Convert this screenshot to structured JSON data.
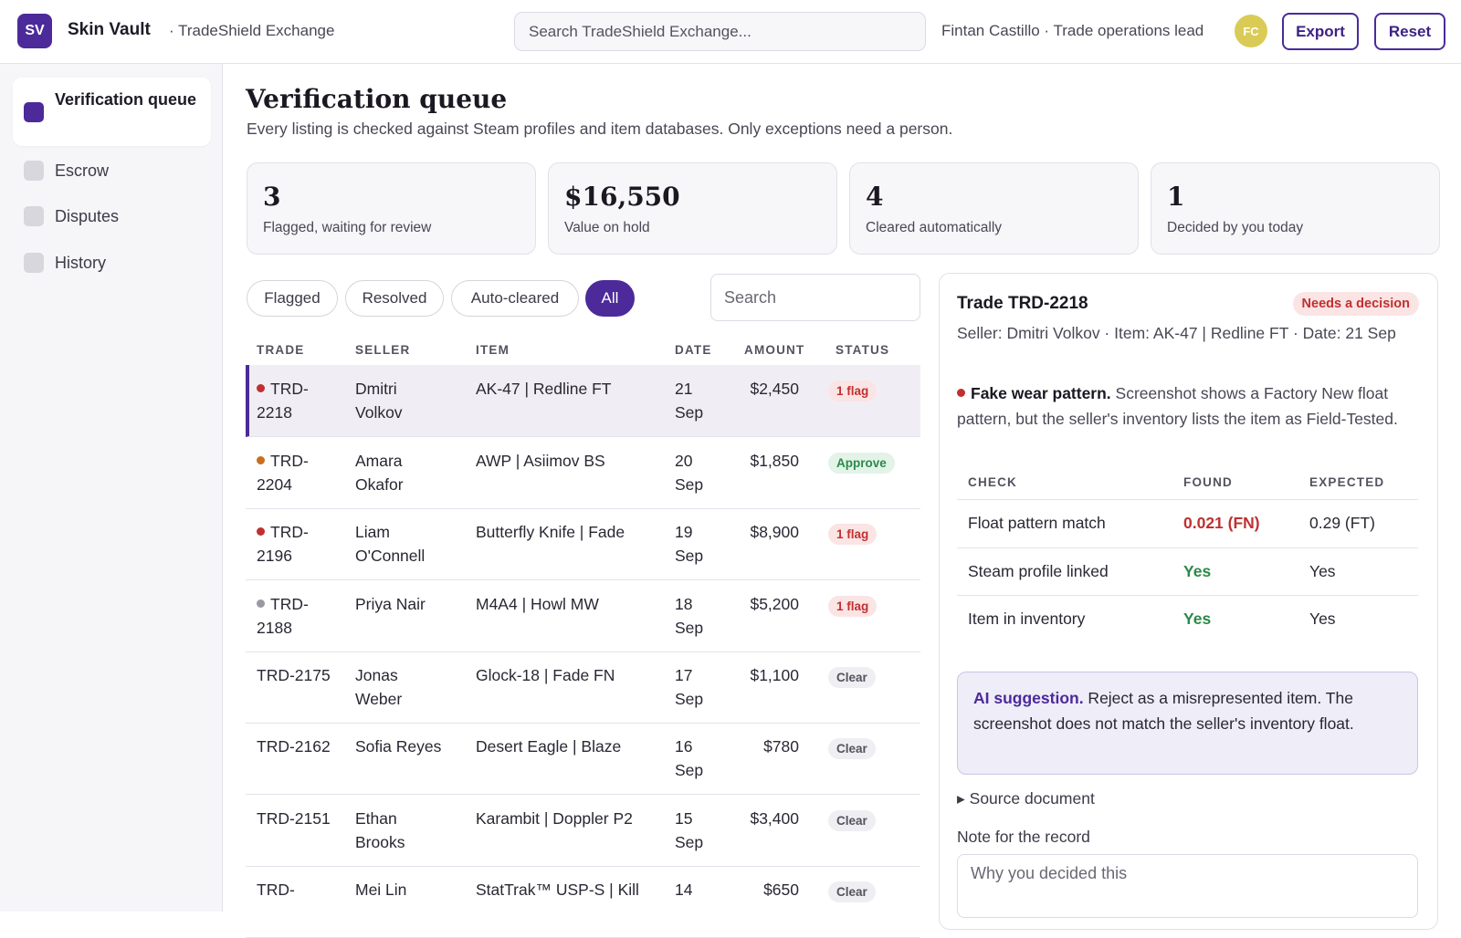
{
  "app": {
    "logo": "SV",
    "name": "Skin Vault",
    "org": "· TradeShield Exchange"
  },
  "search": {
    "placeholder": "Search TradeShield Exchange..."
  },
  "user": {
    "text": "Fintan Castillo · Trade operations lead",
    "initials": "FC"
  },
  "header_buttons": {
    "export": "Export",
    "reset": "Reset"
  },
  "sidebar": {
    "items": [
      {
        "label": "Verification queue",
        "active": true
      },
      {
        "label": "Escrow",
        "active": false
      },
      {
        "label": "Disputes",
        "active": false
      },
      {
        "label": "History",
        "active": false
      }
    ]
  },
  "page": {
    "title": "Verification queue",
    "subtitle": "Every listing is checked against Steam profiles and item databases. Only exceptions need a person."
  },
  "stats": [
    {
      "value": "3",
      "label": "Flagged, waiting for review"
    },
    {
      "value": "$16,550",
      "label": "Value on hold"
    },
    {
      "value": "4",
      "label": "Cleared automatically"
    },
    {
      "value": "1",
      "label": "Decided by you today"
    }
  ],
  "filters": [
    {
      "label": "Flagged",
      "active": false
    },
    {
      "label": "Resolved",
      "active": false
    },
    {
      "label": "Auto-cleared",
      "active": false
    },
    {
      "label": "All",
      "active": true
    }
  ],
  "list_search": {
    "placeholder": "Search"
  },
  "table": {
    "headers": [
      "TRADE",
      "SELLER",
      "ITEM",
      "DATE",
      "AMOUNT",
      "STATUS"
    ],
    "rows": [
      {
        "trade": "TRD-2218",
        "seller": "Dmitri Volkov",
        "item": "AK-47 | Redline FT",
        "date": "21 Sep",
        "amount": "$2,450",
        "status": "1 flag",
        "status_kind": "flag",
        "dot": "#c03030",
        "selected": true
      },
      {
        "trade": "TRD-2204",
        "seller": "Amara Okafor",
        "item": "AWP | Asiimov BS",
        "date": "20 Sep",
        "amount": "$1,850",
        "status": "Approve",
        "status_kind": "approve",
        "dot": "#c86f1e",
        "selected": false
      },
      {
        "trade": "TRD-2196",
        "seller": "Liam O'Connell",
        "item": "Butterfly Knife | Fade",
        "date": "19 Sep",
        "amount": "$8,900",
        "status": "1 flag",
        "status_kind": "flag",
        "dot": "#c03030",
        "selected": false
      },
      {
        "trade": "TRD-2188",
        "seller": "Priya Nair",
        "item": "M4A4 | Howl MW",
        "date": "18 Sep",
        "amount": "$5,200",
        "status": "1 flag",
        "status_kind": "flag",
        "dot": "#9a98a3",
        "selected": false
      },
      {
        "trade": "TRD-2175",
        "seller": "Jonas Weber",
        "item": "Glock-18 | Fade FN",
        "date": "17 Sep",
        "amount": "$1,100",
        "status": "Clear",
        "status_kind": "clear",
        "dot": "",
        "selected": false
      },
      {
        "trade": "TRD-2162",
        "seller": "Sofia Reyes",
        "item": "Desert Eagle | Blaze",
        "date": "16 Sep",
        "amount": "$780",
        "status": "Clear",
        "status_kind": "clear",
        "dot": "",
        "selected": false
      },
      {
        "trade": "TRD-2151",
        "seller": "Ethan Brooks",
        "item": "Karambit | Doppler P2",
        "date": "15 Sep",
        "amount": "$3,400",
        "status": "Clear",
        "status_kind": "clear",
        "dot": "",
        "selected": false
      },
      {
        "trade": "TRD-",
        "seller": "Mei Lin",
        "item": "StatTrak™ USP-S | Kill",
        "date": "14",
        "amount": "$650",
        "status": "Clear",
        "status_kind": "clear",
        "dot": "",
        "selected": false
      }
    ]
  },
  "detail": {
    "title": "Trade TRD-2218",
    "badge": "Needs a decision",
    "meta": "Seller: Dmitri Volkov · Item: AK-47 | Redline FT · Date: 21 Sep",
    "finding_title": "Fake wear pattern.",
    "finding_text": " Screenshot shows a Factory New float pattern, but the seller's inventory lists the item as Field-Tested.",
    "check_headers": [
      "CHECK",
      "FOUND",
      "EXPECTED"
    ],
    "checks": [
      {
        "check": "Float pattern match",
        "found": "0.021 (FN)",
        "found_kind": "bad",
        "expected": "0.29 (FT)"
      },
      {
        "check": "Steam profile linked",
        "found": "Yes",
        "found_kind": "good",
        "expected": "Yes"
      },
      {
        "check": "Item in inventory",
        "found": "Yes",
        "found_kind": "good",
        "expected": "Yes"
      }
    ],
    "ai_title": "AI suggestion.",
    "ai_text": " Reject as a misrepresented item. The screenshot does not match the seller's inventory float.",
    "source_label": "▸ Source document",
    "note_label": "Note for the record",
    "note_placeholder": "Why you decided this"
  },
  "colors": {
    "accent": "#4c2a9a",
    "flag": "#c03030",
    "approve": "#2c8a49",
    "avatar": "#d9cb55"
  }
}
